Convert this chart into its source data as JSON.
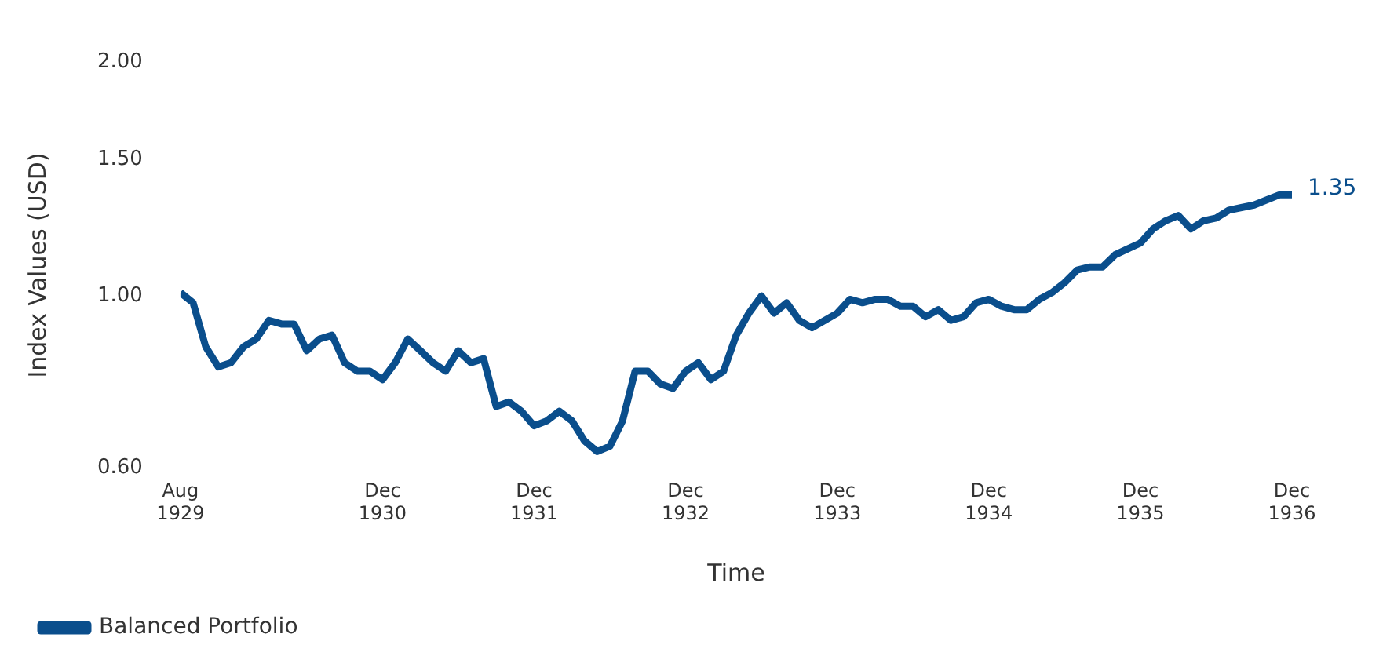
{
  "chart_data": {
    "type": "line",
    "xlabel": "Time",
    "ylabel": "Index Values (USD)",
    "log": "y",
    "grid": false,
    "legend": "bottom left",
    "marker": "none",
    "line_style": "solid",
    "xlim": [
      "1929-08",
      "1936-12"
    ],
    "xticks": [
      {
        "value": "1929-08",
        "label": "Aug 1929"
      },
      {
        "value": "1930-12",
        "label": "Dec 1930"
      },
      {
        "value": "1931-12",
        "label": "Dec 1931"
      },
      {
        "value": "1932-12",
        "label": "Dec 1932"
      },
      {
        "value": "1933-12",
        "label": "Dec 1933"
      },
      {
        "value": "1934-12",
        "label": "Dec 1934"
      },
      {
        "value": "1935-12",
        "label": "Dec 1935"
      },
      {
        "value": "1936-12",
        "label": "Dec 1936"
      }
    ],
    "ylim": [
      0.6,
      2.0
    ],
    "yticks": [
      {
        "value": 0.6,
        "label": "0.60"
      },
      {
        "value": 1.0,
        "label": "1.00"
      },
      {
        "value": 1.5,
        "label": "1.50"
      },
      {
        "value": 2.0,
        "label": "2.00"
      }
    ],
    "x": [
      "1929-08",
      "1929-09",
      "1929-10",
      "1929-11",
      "1929-12",
      "1930-01",
      "1930-02",
      "1930-03",
      "1930-04",
      "1930-05",
      "1930-06",
      "1930-07",
      "1930-08",
      "1930-09",
      "1930-10",
      "1930-11",
      "1930-12",
      "1931-01",
      "1931-02",
      "1931-03",
      "1931-04",
      "1931-05",
      "1931-06",
      "1931-07",
      "1931-08",
      "1931-09",
      "1931-10",
      "1931-11",
      "1931-12",
      "1932-01",
      "1932-02",
      "1932-03",
      "1932-04",
      "1932-05",
      "1932-06",
      "1932-07",
      "1932-08",
      "1932-09",
      "1932-10",
      "1932-11",
      "1932-12",
      "1933-01",
      "1933-02",
      "1933-03",
      "1933-04",
      "1933-05",
      "1933-06",
      "1933-07",
      "1933-08",
      "1933-09",
      "1933-10",
      "1933-11",
      "1933-12",
      "1934-01",
      "1934-02",
      "1934-03",
      "1934-04",
      "1934-05",
      "1934-06",
      "1934-07",
      "1934-08",
      "1934-09",
      "1934-10",
      "1934-11",
      "1934-12",
      "1935-01",
      "1935-02",
      "1935-03",
      "1935-04",
      "1935-05",
      "1935-06",
      "1935-07",
      "1935-08",
      "1935-09",
      "1935-10",
      "1935-11",
      "1935-12",
      "1936-01",
      "1936-02",
      "1936-03",
      "1936-04",
      "1936-05",
      "1936-06",
      "1936-07",
      "1936-08",
      "1936-09",
      "1936-10",
      "1936-11",
      "1936-12"
    ],
    "series": [
      {
        "name": "Balanced Portfolio",
        "color": "#0a4e8c",
        "values": [
          1.01,
          0.98,
          0.86,
          0.81,
          0.82,
          0.86,
          0.88,
          0.93,
          0.92,
          0.92,
          0.85,
          0.88,
          0.89,
          0.82,
          0.8,
          0.8,
          0.78,
          0.82,
          0.88,
          0.85,
          0.82,
          0.8,
          0.85,
          0.82,
          0.83,
          0.72,
          0.73,
          0.71,
          0.68,
          0.69,
          0.71,
          0.69,
          0.65,
          0.63,
          0.64,
          0.69,
          0.8,
          0.8,
          0.77,
          0.76,
          0.8,
          0.82,
          0.78,
          0.8,
          0.89,
          0.95,
          1.0,
          0.95,
          0.98,
          0.93,
          0.91,
          0.93,
          0.95,
          0.99,
          0.98,
          0.99,
          0.99,
          0.97,
          0.97,
          0.94,
          0.96,
          0.93,
          0.94,
          0.98,
          0.99,
          0.97,
          0.96,
          0.96,
          0.99,
          1.01,
          1.04,
          1.08,
          1.09,
          1.09,
          1.13,
          1.15,
          1.17,
          1.22,
          1.25,
          1.27,
          1.22,
          1.25,
          1.26,
          1.29,
          1.3,
          1.31,
          1.33,
          1.35,
          1.35
        ]
      }
    ],
    "annotations": [
      {
        "text": "1.35",
        "x": "1936-12",
        "y": 1.35
      }
    ]
  }
}
